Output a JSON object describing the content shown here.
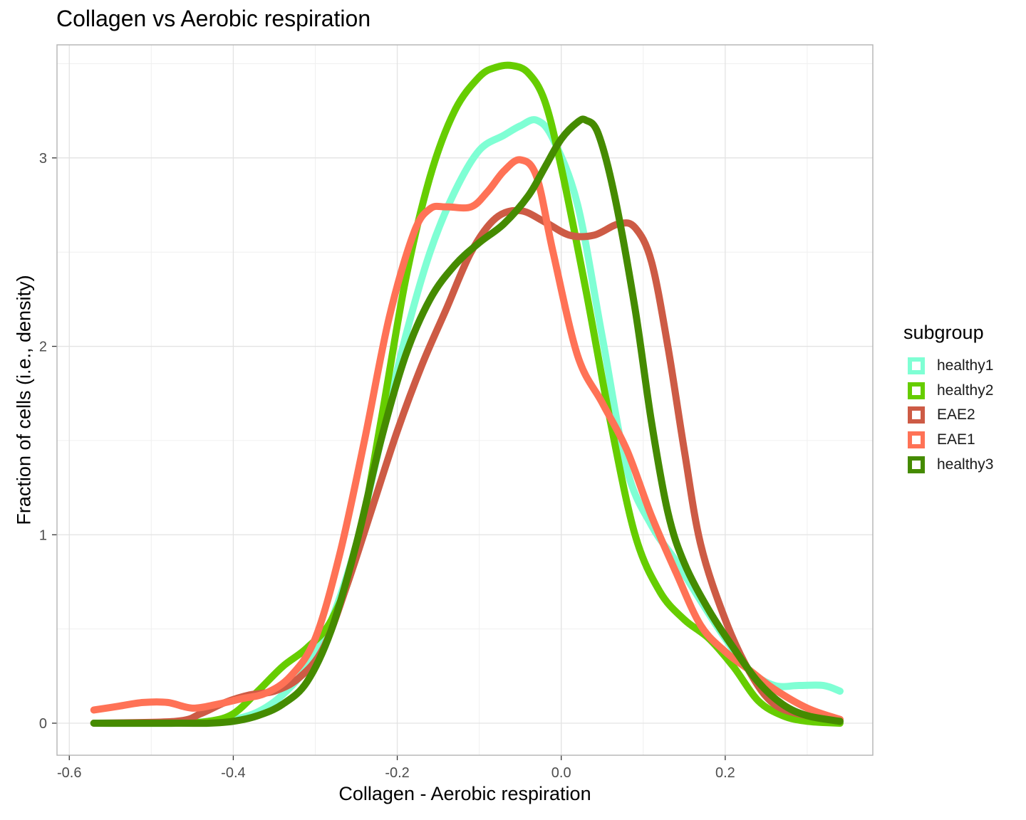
{
  "chart_data": {
    "type": "line",
    "title": "Collagen vs Aerobic respiration",
    "xlabel": "Collagen - Aerobic respiration",
    "ylabel": "Fraction of cells (i.e., density)",
    "xlim": [
      -0.615,
      0.38
    ],
    "ylim": [
      -0.17,
      3.6
    ],
    "x_ticks": [
      -0.6,
      -0.4,
      -0.2,
      0.0,
      0.2
    ],
    "x_tick_labels": [
      "-0.6",
      "-0.4",
      "-0.2",
      "0.0",
      "0.2"
    ],
    "y_ticks": [
      0,
      1,
      2,
      3
    ],
    "y_tick_labels": [
      "0",
      "1",
      "2",
      "3"
    ],
    "grid": true,
    "legend": {
      "title": "subgroup",
      "position": "right"
    },
    "series": [
      {
        "name": "healthy1",
        "color": "#7FFFD4",
        "points": [
          [
            -0.57,
            0.0
          ],
          [
            -0.47,
            0.0
          ],
          [
            -0.43,
            0.01
          ],
          [
            -0.4,
            0.02
          ],
          [
            -0.37,
            0.06
          ],
          [
            -0.34,
            0.15
          ],
          [
            -0.31,
            0.3
          ],
          [
            -0.28,
            0.55
          ],
          [
            -0.25,
            0.95
          ],
          [
            -0.22,
            1.5
          ],
          [
            -0.19,
            2.05
          ],
          [
            -0.16,
            2.5
          ],
          [
            -0.13,
            2.82
          ],
          [
            -0.1,
            3.04
          ],
          [
            -0.07,
            3.12
          ],
          [
            -0.05,
            3.17
          ],
          [
            -0.03,
            3.2
          ],
          [
            -0.01,
            3.1
          ],
          [
            0.02,
            2.75
          ],
          [
            0.05,
            2.05
          ],
          [
            0.08,
            1.35
          ],
          [
            0.11,
            1.05
          ],
          [
            0.14,
            0.86
          ],
          [
            0.17,
            0.65
          ],
          [
            0.2,
            0.45
          ],
          [
            0.23,
            0.28
          ],
          [
            0.26,
            0.2
          ],
          [
            0.29,
            0.2
          ],
          [
            0.32,
            0.2
          ],
          [
            0.34,
            0.17
          ]
        ]
      },
      {
        "name": "healthy2",
        "color": "#66CD00",
        "points": [
          [
            -0.57,
            0.0
          ],
          [
            -0.47,
            0.0
          ],
          [
            -0.43,
            0.01
          ],
          [
            -0.4,
            0.05
          ],
          [
            -0.37,
            0.17
          ],
          [
            -0.34,
            0.3
          ],
          [
            -0.31,
            0.4
          ],
          [
            -0.28,
            0.55
          ],
          [
            -0.25,
            0.9
          ],
          [
            -0.22,
            1.6
          ],
          [
            -0.19,
            2.35
          ],
          [
            -0.16,
            2.9
          ],
          [
            -0.13,
            3.25
          ],
          [
            -0.1,
            3.43
          ],
          [
            -0.08,
            3.48
          ],
          [
            -0.06,
            3.49
          ],
          [
            -0.04,
            3.45
          ],
          [
            -0.02,
            3.3
          ],
          [
            0.0,
            2.95
          ],
          [
            0.03,
            2.3
          ],
          [
            0.06,
            1.6
          ],
          [
            0.09,
            1.0
          ],
          [
            0.12,
            0.7
          ],
          [
            0.15,
            0.55
          ],
          [
            0.18,
            0.45
          ],
          [
            0.21,
            0.3
          ],
          [
            0.24,
            0.12
          ],
          [
            0.27,
            0.04
          ],
          [
            0.3,
            0.01
          ],
          [
            0.34,
            0.0
          ]
        ]
      },
      {
        "name": "EAE2",
        "color": "#CD5B45",
        "points": [
          [
            -0.57,
            0.0
          ],
          [
            -0.47,
            0.01
          ],
          [
            -0.44,
            0.05
          ],
          [
            -0.41,
            0.11
          ],
          [
            -0.38,
            0.15
          ],
          [
            -0.35,
            0.17
          ],
          [
            -0.32,
            0.24
          ],
          [
            -0.29,
            0.4
          ],
          [
            -0.26,
            0.75
          ],
          [
            -0.23,
            1.15
          ],
          [
            -0.2,
            1.55
          ],
          [
            -0.17,
            1.9
          ],
          [
            -0.14,
            2.2
          ],
          [
            -0.11,
            2.5
          ],
          [
            -0.08,
            2.68
          ],
          [
            -0.05,
            2.72
          ],
          [
            -0.02,
            2.66
          ],
          [
            0.01,
            2.59
          ],
          [
            0.04,
            2.59
          ],
          [
            0.07,
            2.65
          ],
          [
            0.09,
            2.63
          ],
          [
            0.11,
            2.45
          ],
          [
            0.13,
            2.0
          ],
          [
            0.15,
            1.45
          ],
          [
            0.17,
            0.95
          ],
          [
            0.2,
            0.55
          ],
          [
            0.23,
            0.27
          ],
          [
            0.26,
            0.1
          ],
          [
            0.3,
            0.04
          ],
          [
            0.34,
            0.02
          ]
        ]
      },
      {
        "name": "EAE1",
        "color": "#FF7256",
        "points": [
          [
            -0.57,
            0.07
          ],
          [
            -0.54,
            0.09
          ],
          [
            -0.51,
            0.11
          ],
          [
            -0.48,
            0.11
          ],
          [
            -0.45,
            0.08
          ],
          [
            -0.42,
            0.1
          ],
          [
            -0.39,
            0.13
          ],
          [
            -0.36,
            0.16
          ],
          [
            -0.33,
            0.25
          ],
          [
            -0.3,
            0.45
          ],
          [
            -0.27,
            0.9
          ],
          [
            -0.24,
            1.5
          ],
          [
            -0.21,
            2.15
          ],
          [
            -0.18,
            2.6
          ],
          [
            -0.16,
            2.73
          ],
          [
            -0.14,
            2.74
          ],
          [
            -0.11,
            2.74
          ],
          [
            -0.09,
            2.82
          ],
          [
            -0.07,
            2.93
          ],
          [
            -0.05,
            2.99
          ],
          [
            -0.03,
            2.9
          ],
          [
            -0.01,
            2.5
          ],
          [
            0.02,
            1.95
          ],
          [
            0.05,
            1.7
          ],
          [
            0.08,
            1.45
          ],
          [
            0.11,
            1.1
          ],
          [
            0.14,
            0.8
          ],
          [
            0.17,
            0.52
          ],
          [
            0.2,
            0.38
          ],
          [
            0.23,
            0.28
          ],
          [
            0.26,
            0.18
          ],
          [
            0.3,
            0.08
          ],
          [
            0.34,
            0.02
          ]
        ]
      },
      {
        "name": "healthy3",
        "color": "#458B00",
        "points": [
          [
            -0.57,
            0.0
          ],
          [
            -0.47,
            0.0
          ],
          [
            -0.43,
            0.0
          ],
          [
            -0.4,
            0.01
          ],
          [
            -0.37,
            0.04
          ],
          [
            -0.34,
            0.1
          ],
          [
            -0.31,
            0.22
          ],
          [
            -0.28,
            0.5
          ],
          [
            -0.25,
            0.95
          ],
          [
            -0.22,
            1.5
          ],
          [
            -0.19,
            1.95
          ],
          [
            -0.16,
            2.25
          ],
          [
            -0.13,
            2.43
          ],
          [
            -0.1,
            2.55
          ],
          [
            -0.07,
            2.65
          ],
          [
            -0.04,
            2.8
          ],
          [
            -0.02,
            2.95
          ],
          [
            0.0,
            3.1
          ],
          [
            0.02,
            3.19
          ],
          [
            0.03,
            3.2
          ],
          [
            0.045,
            3.13
          ],
          [
            0.065,
            2.8
          ],
          [
            0.09,
            2.2
          ],
          [
            0.11,
            1.6
          ],
          [
            0.13,
            1.12
          ],
          [
            0.15,
            0.85
          ],
          [
            0.18,
            0.6
          ],
          [
            0.21,
            0.4
          ],
          [
            0.24,
            0.22
          ],
          [
            0.27,
            0.1
          ],
          [
            0.3,
            0.04
          ],
          [
            0.34,
            0.01
          ]
        ]
      }
    ]
  }
}
